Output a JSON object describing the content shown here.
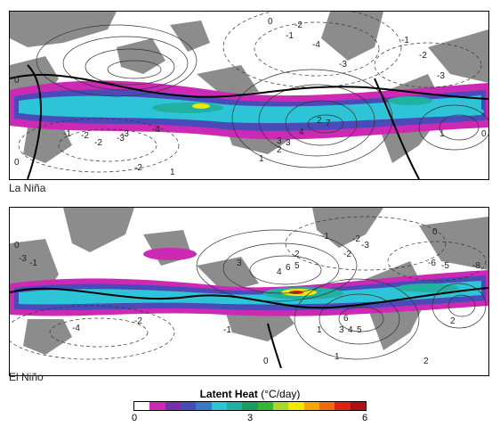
{
  "panels": [
    {
      "id": "top",
      "label": "La Niña",
      "contour_labels": [
        "0",
        "-1",
        "-2",
        "-3",
        "-4",
        "-1",
        "-2",
        "-3",
        "0",
        "2",
        "1",
        "4",
        "7",
        "3",
        "0",
        "-3",
        "-2",
        "-1",
        "-4",
        "1",
        "2",
        "3",
        "-2",
        "-2",
        "-3",
        "0",
        "1"
      ]
    },
    {
      "id": "bottom",
      "label": "El Niño",
      "contour_labels": [
        "0",
        "-1",
        "-2",
        "-3",
        "-2",
        "2",
        "5",
        "3",
        "4",
        "6",
        "0",
        "-1",
        "-3",
        "-4",
        "-2",
        "1",
        "3",
        "4",
        "5",
        "6",
        "2",
        "-1",
        "-6",
        "-5",
        "-8",
        "0",
        "1",
        "2"
      ]
    }
  ],
  "colorbar": {
    "title": "Latent Heat",
    "unit": "(°C/day)",
    "ticks": [
      "0",
      "3",
      "6"
    ],
    "range": [
      0,
      6
    ],
    "colors": [
      "#ffffff",
      "#cc2ab5",
      "#7a2fa8",
      "#4a4ab8",
      "#3a78c8",
      "#2ec4d8",
      "#22b0a0",
      "#1a9e60",
      "#34b834",
      "#a8d82a",
      "#f0e800",
      "#f5a800",
      "#f06a10",
      "#e02010",
      "#b01010"
    ]
  }
}
